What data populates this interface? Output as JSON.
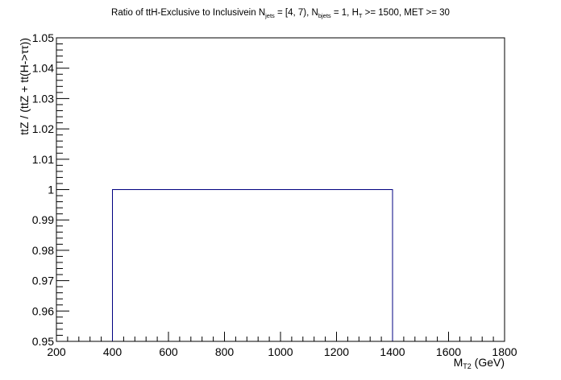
{
  "chart_data": {
    "type": "histogram",
    "title": {
      "pre": "Ratio of ttH-Exclusive to Inclusivein N",
      "sub1": "jets",
      "mid1": " = [4, 7), N",
      "sub2": "bjets",
      "mid2": " = 1, H",
      "sub3": "T",
      "post": " >= 1500, MET >= 30"
    },
    "xlabel": {
      "main": "M",
      "sub": "T2",
      "unit": " (GeV)"
    },
    "ylabel": "ttZ / (ttZ + tt(H->ττ))",
    "xlim": [
      200,
      1800
    ],
    "ylim": [
      0.95,
      1.05
    ],
    "xticks": [
      "200",
      "400",
      "600",
      "800",
      "1000",
      "1200",
      "1400",
      "1600",
      "1800"
    ],
    "yticks": [
      "0.95",
      "0.96",
      "0.97",
      "0.98",
      "0.99",
      "1",
      "1.01",
      "1.02",
      "1.03",
      "1.04",
      "1.05"
    ],
    "bins": [
      {
        "x_low": 400,
        "x_high": 1400,
        "value": 1.0
      }
    ],
    "line_color": "#000080",
    "grid": false,
    "legend": "none"
  }
}
